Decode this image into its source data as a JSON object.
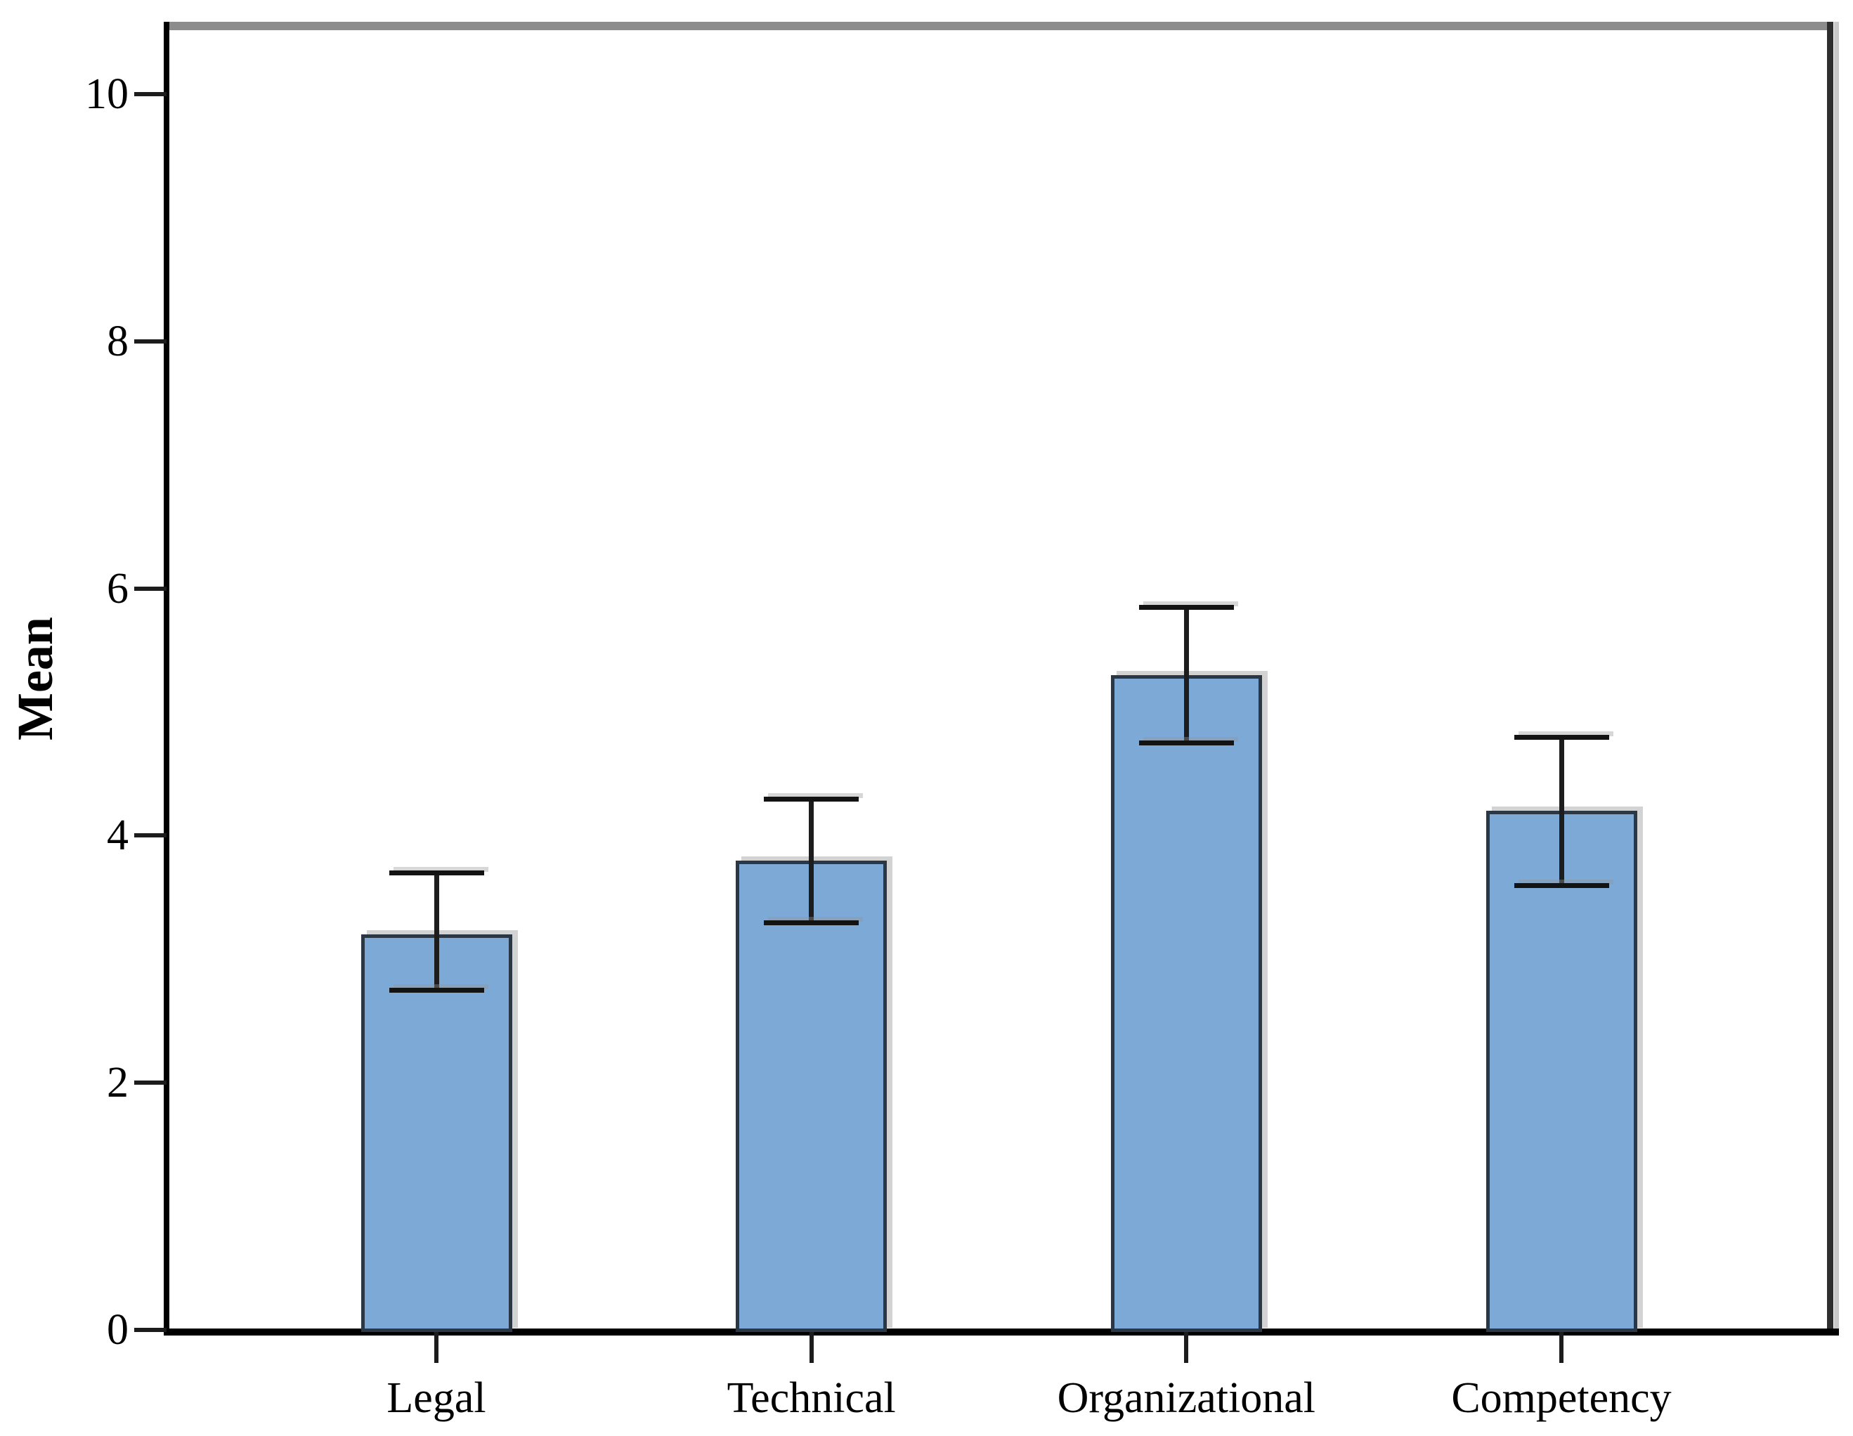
{
  "chart_data": {
    "type": "bar",
    "title": "",
    "xlabel": "",
    "ylabel": "Mean",
    "categories": [
      "Legal",
      "Technical",
      "Organizational",
      "Competency"
    ],
    "values": [
      3.2,
      3.8,
      5.3,
      4.2
    ],
    "error_low": [
      2.75,
      3.3,
      4.75,
      3.6
    ],
    "error_high": [
      3.7,
      4.3,
      5.85,
      4.8
    ],
    "y_ticks": [
      0,
      2,
      4,
      6,
      8,
      10
    ],
    "ylim": [
      0,
      10
    ],
    "grid": false,
    "legend": null,
    "bar_fill_color": "#7DA9D7",
    "bar_border_color": "#2b3744",
    "error_bar_color": "#1d1d1d",
    "axis_color": "#000000",
    "frame_top_color": "#8c8c8c",
    "frame_right_color": "#2e2e2e",
    "text_color": "#000000"
  }
}
